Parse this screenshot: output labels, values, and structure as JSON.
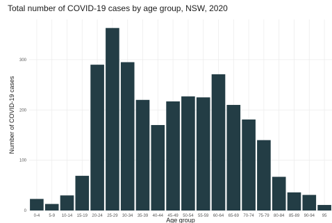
{
  "chart_data": {
    "type": "bar",
    "title": "Total number of COVID-19 cases by age group, NSW, 2020",
    "xlabel": "Age group",
    "ylabel": "Number of COVID-19 cases",
    "categories": [
      "0-4",
      "5-9",
      "10-14",
      "15-19",
      "20-24",
      "25-29",
      "30-34",
      "35-39",
      "40-44",
      "45-49",
      "50-54",
      "55-59",
      "60-64",
      "65-69",
      "70-74",
      "75-79",
      "80-84",
      "85-89",
      "90-94",
      "95"
    ],
    "values": [
      23,
      13,
      30,
      69,
      290,
      363,
      295,
      220,
      170,
      217,
      227,
      225,
      271,
      210,
      181,
      140,
      67,
      36,
      31,
      11
    ],
    "ylim": [
      0,
      380
    ],
    "yticks": [
      0,
      100,
      200,
      300
    ],
    "grid": true,
    "bar_color": "#233d45",
    "grid_color": "#ececec"
  }
}
